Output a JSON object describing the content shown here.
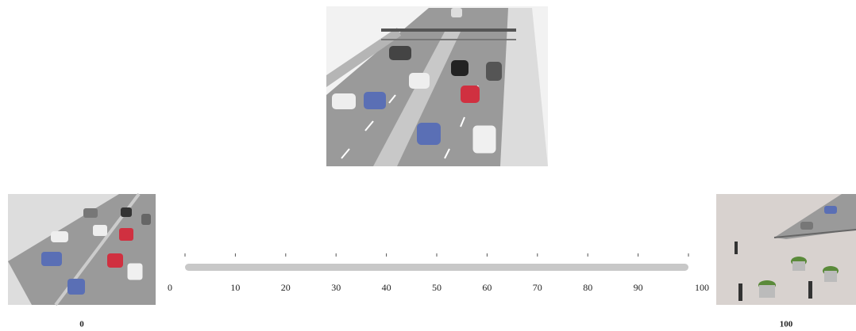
{
  "scale": {
    "ticks": [
      0,
      10,
      20,
      30,
      40,
      50,
      60,
      70,
      80,
      90,
      100
    ]
  },
  "left_image": {
    "caption": "0"
  },
  "right_image": {
    "caption": "100"
  }
}
